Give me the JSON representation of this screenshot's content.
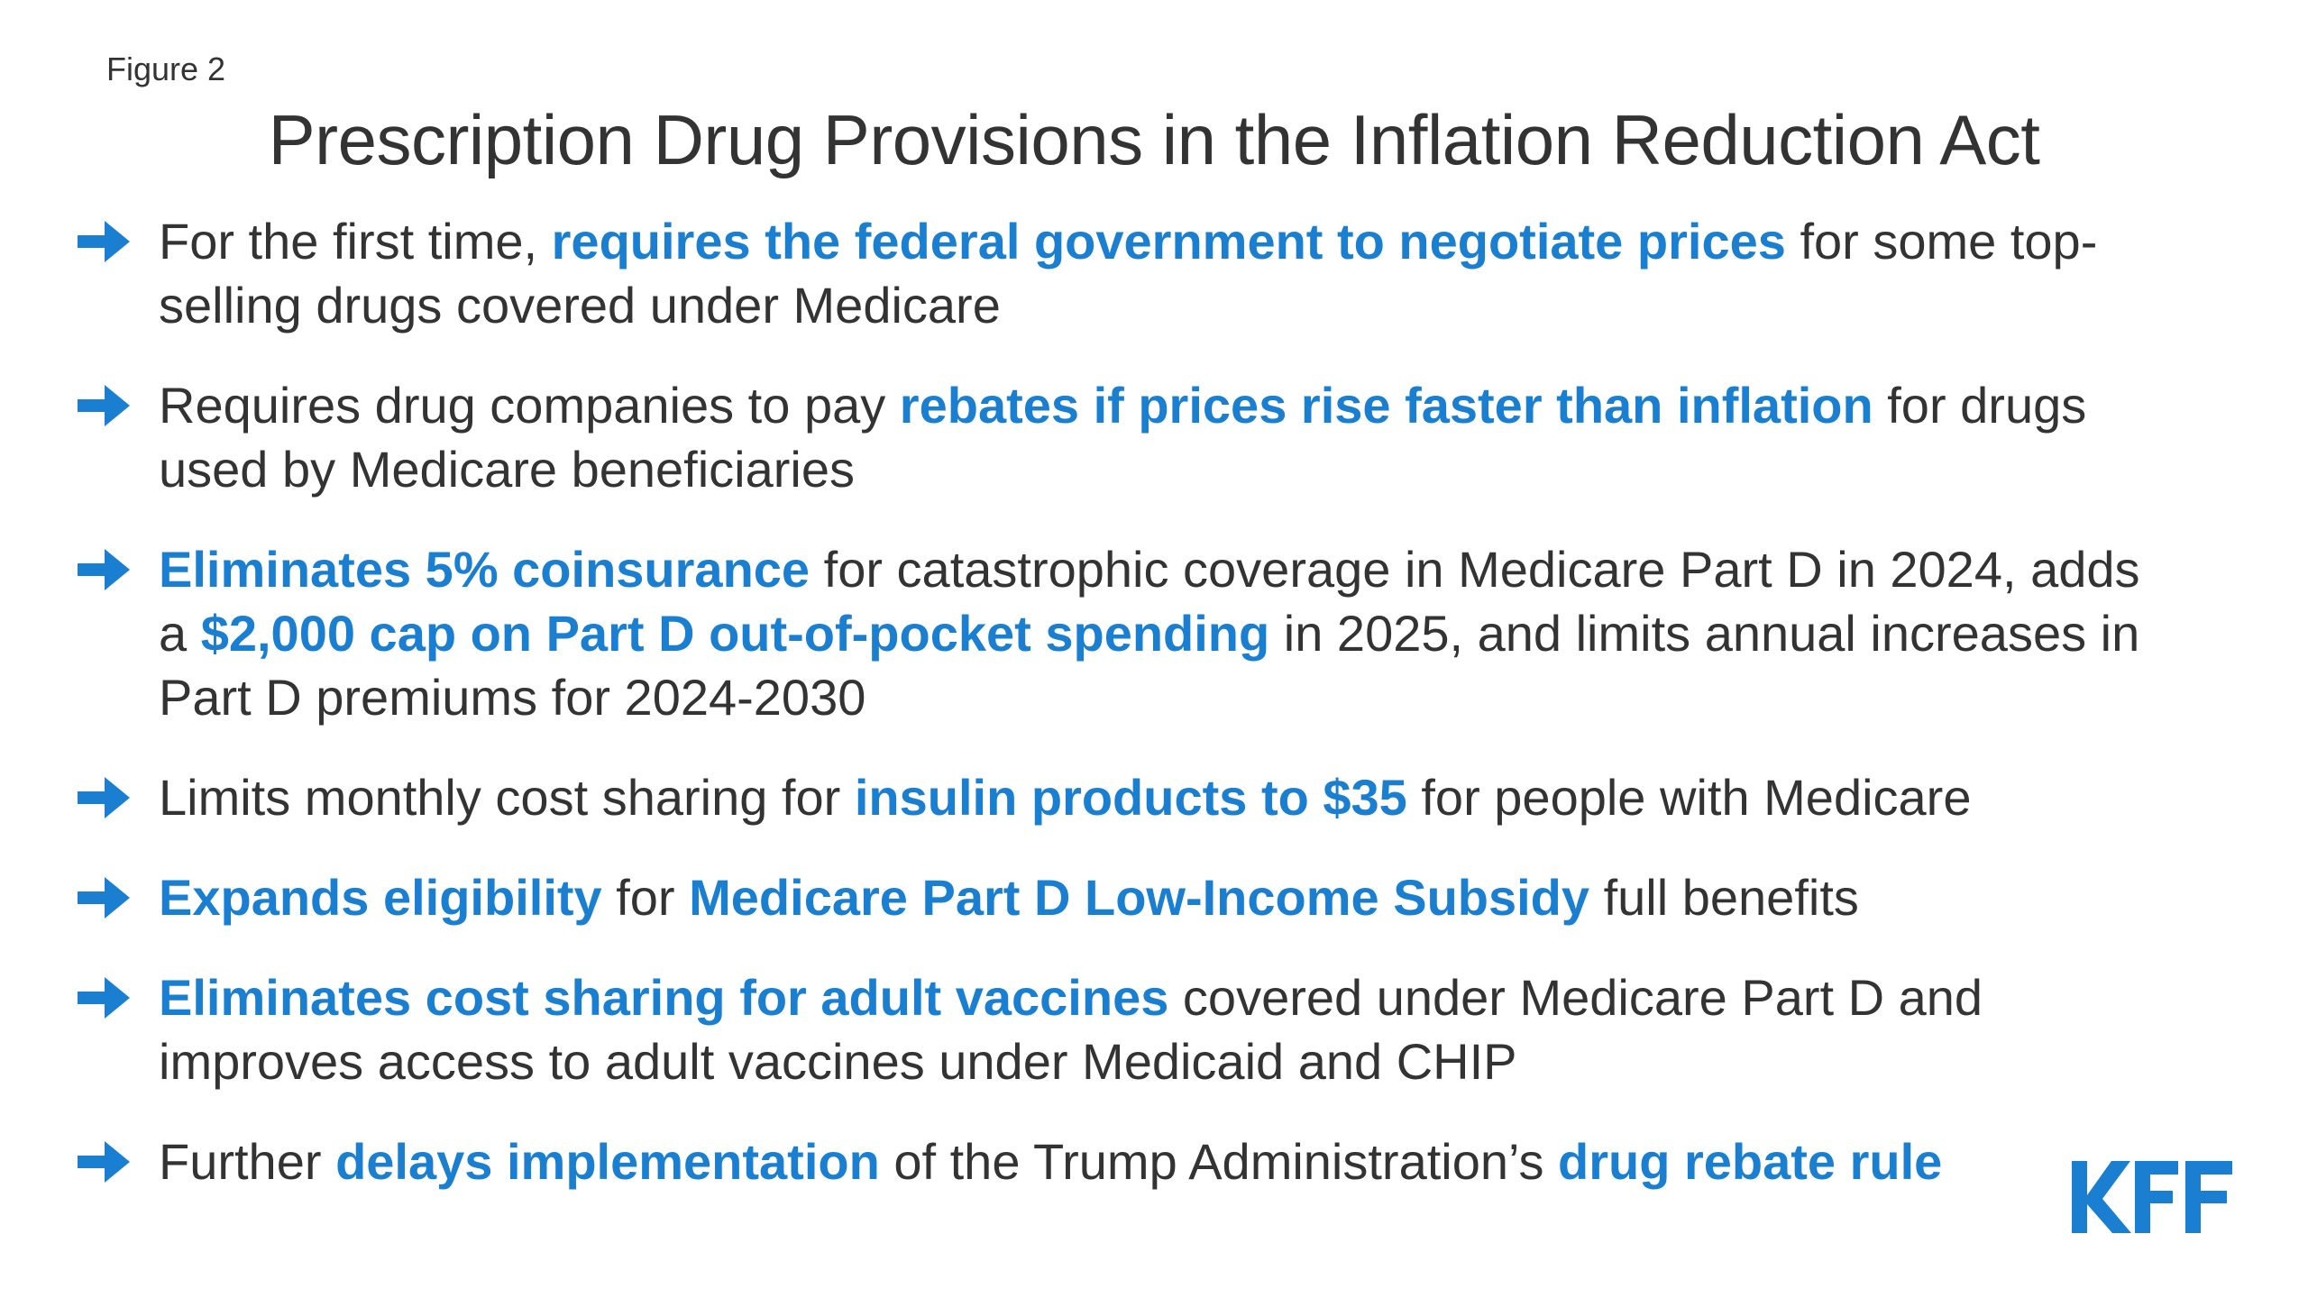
{
  "figure_label": "Figure 2",
  "title": "Prescription Drug Provisions in the Inflation Reduction Act",
  "colors": {
    "text": "#333333",
    "accent": "#1a7fd0"
  },
  "bullet_icon": "right-arrow-icon",
  "bullets": [
    {
      "s0": "For the first time, ",
      "h0": "requires the federal government to negotiate prices",
      "s1": " for some top-selling drugs covered under Medicare"
    },
    {
      "s0": "Requires drug companies to pay ",
      "h0": "rebates if prices rise faster than inflation",
      "s1": " for drugs used by Medicare beneficiaries"
    },
    {
      "h0": "Eliminates 5% coinsurance",
      "s0": " for catastrophic coverage in Medicare Part D in 2024, adds a ",
      "h1": "$2,000 cap on Part D out-of-pocket spending",
      "s1": " in 2025, and limits annual increases in Part D premiums for 2024-2030"
    },
    {
      "s0": "Limits monthly cost sharing for ",
      "h0": "insulin products to $35",
      "s1": " for people with Medicare"
    },
    {
      "h0": "Expands eligibility",
      "s0": " for ",
      "h1": "Medicare Part D Low-Income Subsidy",
      "s1": " full benefits"
    },
    {
      "h0": "Eliminates cost sharing for adult vaccines",
      "s0": " covered under Medicare Part D and improves access to adult vaccines under Medicaid and CHIP"
    },
    {
      "s0": "Further ",
      "h0": "delays implementation",
      "s1": " of the Trump Administration’s ",
      "h1": "drug rebate rule"
    }
  ],
  "logo": {
    "text": "KFF",
    "icon": "kff-logo"
  }
}
